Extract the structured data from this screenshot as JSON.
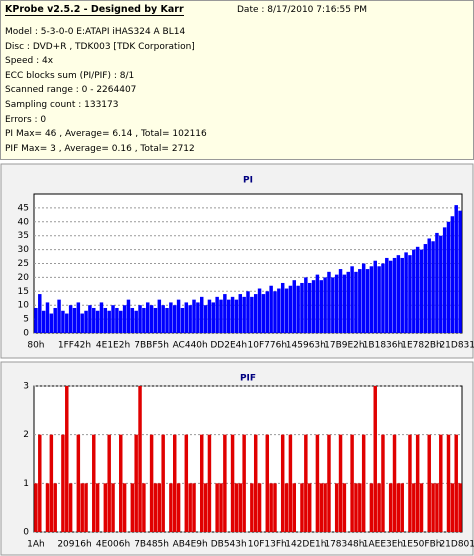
{
  "header": {
    "title": "KProbe v2.5.2 - Designed by Karr",
    "date": "Date : 8/17/2010 7:16:55 PM",
    "lines": [
      "Model : 5-3-0-0 E:ATAPI   iHAS324   A     BL14",
      "Disc : DVD+R , TDK003 [TDK Corporation]",
      "Speed : 4x",
      "ECC blocks sum (PI/PIF) : 8/1",
      "Scanned range : 0 - 2264407",
      "Sampling count : 133173",
      "Errors : 0",
      "PI Max= 46 , Average= 6.14 , Total= 102116",
      "PIF Max= 3 , Average= 0.16 , Total= 2712"
    ]
  },
  "chart_data": [
    {
      "type": "bar",
      "title": "PI",
      "color": "#0000ff",
      "ylim": [
        0,
        50
      ],
      "yticks": [
        0,
        5,
        10,
        15,
        20,
        25,
        30,
        35,
        40,
        45
      ],
      "grid": true,
      "categories": [
        "80h",
        null,
        null,
        null,
        null,
        null,
        null,
        null,
        null,
        null,
        "1FF42h",
        null,
        null,
        null,
        null,
        null,
        null,
        null,
        null,
        null,
        "4E1E2h",
        null,
        null,
        null,
        null,
        null,
        null,
        null,
        null,
        null,
        "7BBF5h",
        null,
        null,
        null,
        null,
        null,
        null,
        null,
        null,
        null,
        "AC440h",
        null,
        null,
        null,
        null,
        null,
        null,
        null,
        null,
        null,
        "DD2E4h",
        null,
        null,
        null,
        null,
        null,
        null,
        null,
        null,
        null,
        "10F776h",
        null,
        null,
        null,
        null,
        null,
        null,
        null,
        null,
        null,
        "145963h",
        null,
        null,
        null,
        null,
        null,
        null,
        null,
        null,
        null,
        "17B9E2h",
        null,
        null,
        null,
        null,
        null,
        null,
        null,
        null,
        null,
        "1B1836h",
        null,
        null,
        null,
        null,
        null,
        null,
        null,
        null,
        null,
        "1E782Bh",
        null,
        null,
        null,
        null,
        null,
        null,
        null,
        null,
        null,
        "21D831h"
      ],
      "values": [
        9,
        14,
        8,
        11,
        7,
        9,
        12,
        8,
        7,
        10,
        9,
        11,
        7,
        8,
        10,
        9,
        8,
        11,
        9,
        8,
        10,
        9,
        8,
        10,
        12,
        9,
        8,
        10,
        9,
        11,
        10,
        9,
        12,
        10,
        9,
        11,
        10,
        12,
        9,
        11,
        10,
        12,
        11,
        13,
        10,
        12,
        11,
        13,
        12,
        14,
        12,
        13,
        12,
        14,
        13,
        15,
        13,
        14,
        16,
        14,
        15,
        17,
        15,
        16,
        18,
        16,
        17,
        19,
        17,
        18,
        20,
        18,
        19,
        21,
        19,
        20,
        22,
        20,
        21,
        23,
        21,
        22,
        24,
        22,
        23,
        25,
        23,
        24,
        26,
        24,
        25,
        27,
        26,
        27,
        28,
        27,
        29,
        28,
        30,
        31,
        30,
        32,
        34,
        33,
        36,
        35,
        38,
        40,
        42,
        46,
        44
      ]
    },
    {
      "type": "bar",
      "title": "PIF",
      "color": "#e00000",
      "ylim": [
        0,
        3
      ],
      "yticks": [
        0,
        1,
        2,
        3
      ],
      "grid": true,
      "categories": [
        "1Ah",
        null,
        null,
        null,
        null,
        null,
        null,
        null,
        null,
        null,
        "20916h",
        null,
        null,
        null,
        null,
        null,
        null,
        null,
        null,
        null,
        "4E006h",
        null,
        null,
        null,
        null,
        null,
        null,
        null,
        null,
        null,
        "7B485h",
        null,
        null,
        null,
        null,
        null,
        null,
        null,
        null,
        null,
        "AB4E9h",
        null,
        null,
        null,
        null,
        null,
        null,
        null,
        null,
        null,
        "DB543h",
        null,
        null,
        null,
        null,
        null,
        null,
        null,
        null,
        null,
        "10F13Fh",
        null,
        null,
        null,
        null,
        null,
        null,
        null,
        null,
        null,
        "142DE1h",
        null,
        null,
        null,
        null,
        null,
        null,
        null,
        null,
        null,
        "178348h",
        null,
        null,
        null,
        null,
        null,
        null,
        null,
        null,
        null,
        "1AEE3Eh",
        null,
        null,
        null,
        null,
        null,
        null,
        null,
        null,
        null,
        "1E50FBh",
        null,
        null,
        null,
        null,
        null,
        null,
        null,
        null,
        null,
        "21D801h"
      ],
      "values": [
        1,
        2,
        0,
        1,
        2,
        1,
        0,
        2,
        3,
        1,
        0,
        2,
        1,
        1,
        0,
        2,
        1,
        0,
        1,
        2,
        1,
        0,
        2,
        1,
        0,
        1,
        2,
        3,
        1,
        0,
        2,
        1,
        1,
        2,
        0,
        1,
        2,
        1,
        0,
        2,
        1,
        1,
        0,
        2,
        1,
        2,
        0,
        1,
        1,
        2,
        0,
        2,
        1,
        1,
        2,
        0,
        1,
        2,
        1,
        0,
        2,
        1,
        1,
        0,
        2,
        1,
        2,
        1,
        0,
        1,
        2,
        1,
        0,
        2,
        1,
        1,
        2,
        0,
        1,
        2,
        1,
        0,
        2,
        1,
        1,
        2,
        0,
        1,
        3,
        1,
        2,
        0,
        1,
        2,
        1,
        1,
        0,
        2,
        1,
        2,
        1,
        0,
        2,
        1,
        1,
        2,
        0,
        2,
        1,
        2,
        1
      ]
    }
  ]
}
